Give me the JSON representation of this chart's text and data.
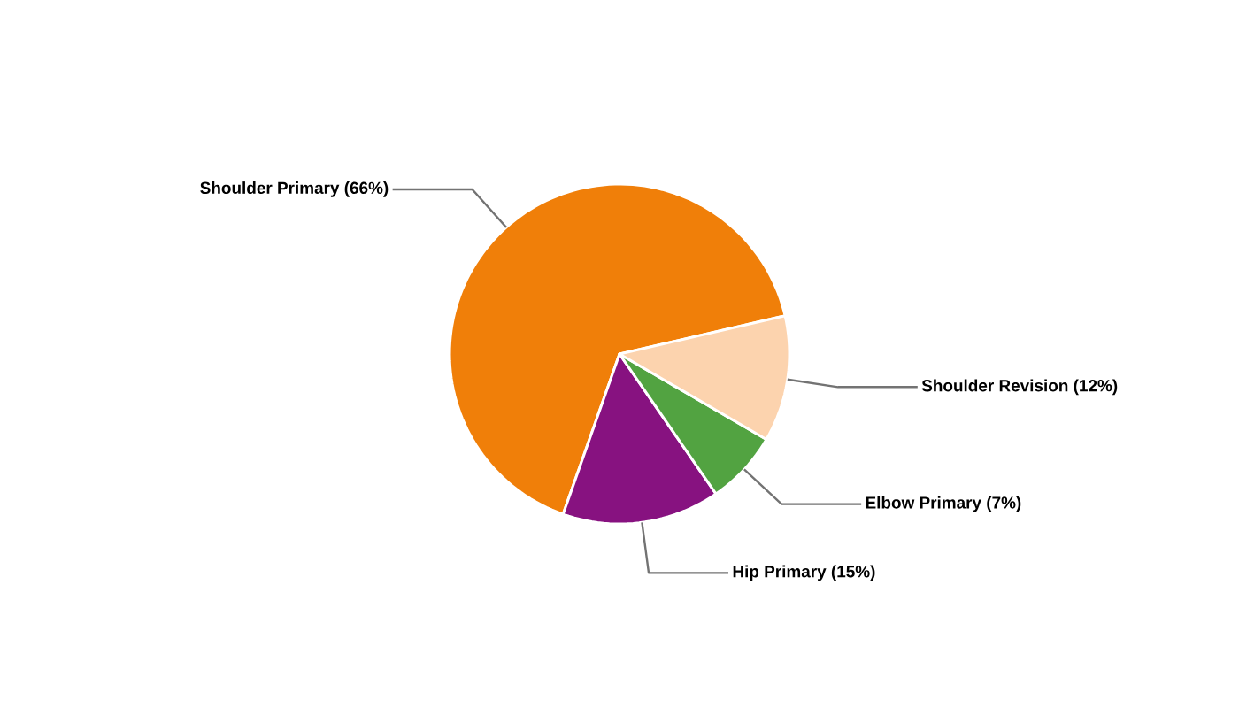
{
  "chart_data": {
    "type": "pie",
    "categories": [
      "Shoulder Primary (66%)",
      "Hip Primary (15%)",
      "Elbow Primary (7%)",
      "Shoulder Revision (12%)"
    ],
    "values": [
      66,
      15,
      7,
      12
    ],
    "colors": [
      "#f07f09",
      "#871280",
      "#52a341",
      "#fcd3ae"
    ]
  }
}
